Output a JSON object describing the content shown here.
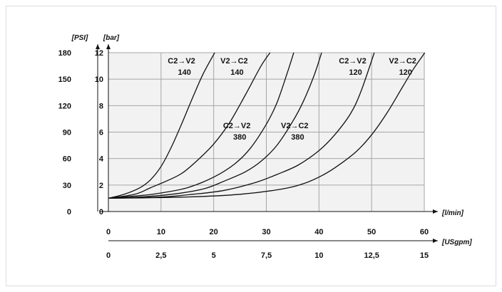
{
  "chart_data": {
    "type": "line",
    "xlabel": "[l/min]",
    "x2label": "[USgpm]",
    "ylabel": "[bar]",
    "y2label": "[PSI]",
    "xlim": [
      0,
      60
    ],
    "ylim": [
      0,
      12
    ],
    "x_ticks": [
      "0",
      "10",
      "20",
      "30",
      "40",
      "50",
      "60"
    ],
    "x2_ticks": [
      "0",
      "2,5",
      "5",
      "7,5",
      "10",
      "12,5",
      "15"
    ],
    "y_ticks": [
      "0",
      "2",
      "4",
      "6",
      "8",
      "10",
      "12"
    ],
    "y2_ticks": [
      "0",
      "30",
      "60",
      "90",
      "120",
      "150",
      "180"
    ],
    "grid": true,
    "series": [
      {
        "x": [
          0,
          3,
          6,
          8,
          10,
          12,
          14,
          16,
          18,
          20.2
        ],
        "y": [
          1.0,
          1.3,
          1.8,
          2.4,
          3.4,
          4.9,
          6.7,
          8.6,
          10.4,
          12
        ]
      },
      {
        "x": [
          0,
          5,
          8,
          11,
          14,
          17,
          20,
          23,
          26,
          29,
          30.7
        ],
        "y": [
          1.0,
          1.3,
          1.8,
          2.3,
          2.9,
          3.9,
          5.1,
          6.7,
          8.8,
          11.0,
          12
        ]
      },
      {
        "x": [
          0,
          6,
          10,
          15,
          20,
          24,
          27,
          30,
          32,
          34,
          35.2
        ],
        "y": [
          1.0,
          1.2,
          1.4,
          1.8,
          2.6,
          3.6,
          4.8,
          6.6,
          8.2,
          10.5,
          12
        ]
      },
      {
        "x": [
          0,
          6,
          12,
          18,
          22,
          26,
          29,
          32,
          35,
          37,
          39,
          40.5
        ],
        "y": [
          1.0,
          1.1,
          1.3,
          1.7,
          2.3,
          3.0,
          3.8,
          5.0,
          6.8,
          8.3,
          10.2,
          12
        ]
      },
      {
        "x": [
          0,
          10,
          16,
          22,
          28,
          32,
          36,
          40,
          43,
          46,
          48,
          50.5
        ],
        "y": [
          1.0,
          1.1,
          1.3,
          1.6,
          2.2,
          2.8,
          3.5,
          4.6,
          5.8,
          7.4,
          9.1,
          12
        ]
      },
      {
        "x": [
          0,
          15,
          25,
          33,
          37,
          40,
          43,
          47,
          50,
          53,
          56,
          58,
          60.1
        ],
        "y": [
          1.0,
          1.1,
          1.3,
          1.7,
          2.1,
          2.6,
          3.3,
          4.5,
          5.8,
          7.5,
          9.5,
          10.8,
          12
        ]
      }
    ],
    "annotations": [
      {
        "line1": "C2→V2",
        "line2": "140",
        "x": 16.5,
        "y": 11.2
      },
      {
        "line1": "V2→C2",
        "line2": "140",
        "x": 26.5,
        "y": 11.2
      },
      {
        "line1": "C2→V2",
        "line2": "380",
        "x": 27.0,
        "y": 6.3
      },
      {
        "line1": "V2→C2",
        "line2": "380",
        "x": 38.0,
        "y": 6.3
      },
      {
        "line1": "C2→V2",
        "line2": "120",
        "x": 49.0,
        "y": 11.2
      },
      {
        "line1": "V2→C2",
        "line2": "120",
        "x": 58.5,
        "y": 11.2
      }
    ]
  }
}
